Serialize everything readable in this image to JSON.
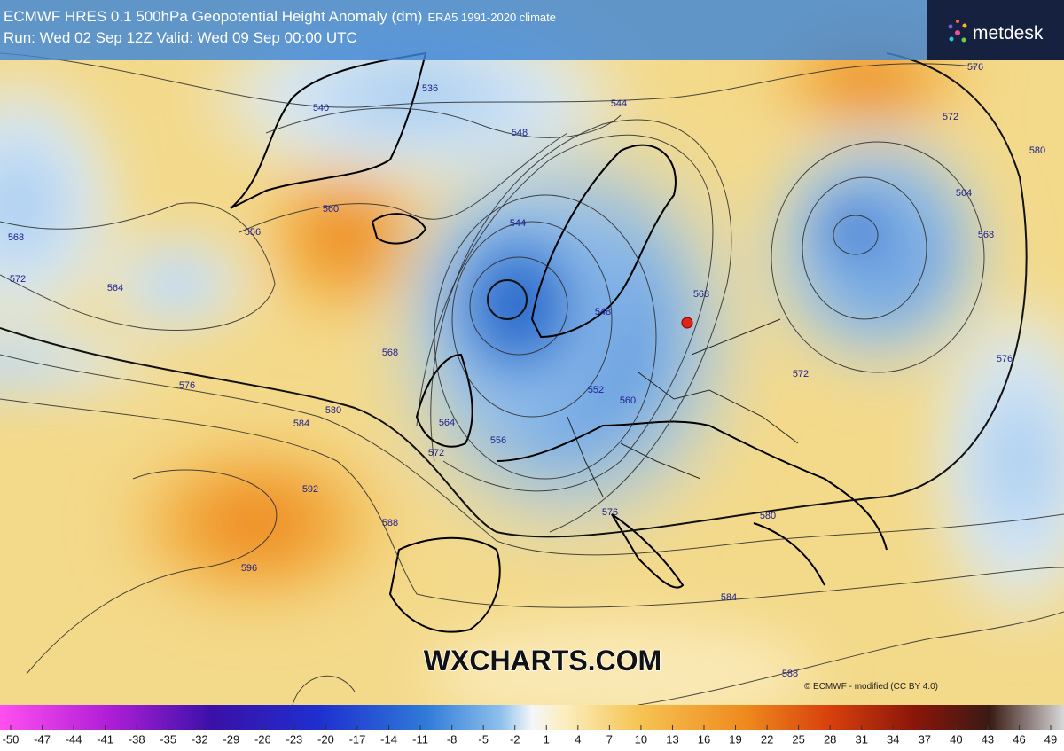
{
  "header": {
    "title_main": "ECMWF HRES 0.1 500hPa Geopotential Height Anomaly (dm)",
    "title_sub": "ERA5 1991-2020 climate",
    "run_line": "Run: Wed 02 Sep 12Z Valid: Wed 09 Sep 00:00 UTC"
  },
  "logo": "metdesk",
  "watermark": "WXCHARTS.COM",
  "credit": "© ECMWF - modified (CC BY 4.0)",
  "contour_labels": [
    536,
    540,
    544,
    548,
    560,
    556,
    568,
    572,
    564,
    544,
    548,
    552,
    560,
    568,
    572,
    576,
    580,
    564,
    568,
    572,
    576,
    568,
    576,
    580,
    584,
    564,
    572,
    556,
    592,
    588,
    596,
    576,
    580,
    584,
    588
  ],
  "colorbar": {
    "ticks": [
      -50,
      -47,
      -44,
      -41,
      -38,
      -35,
      -32,
      -29,
      -26,
      -23,
      -20,
      -17,
      -14,
      -11,
      -8,
      -5,
      -2,
      1,
      4,
      7,
      10,
      13,
      16,
      19,
      22,
      25,
      28,
      31,
      34,
      37,
      40,
      43,
      46,
      49
    ]
  }
}
